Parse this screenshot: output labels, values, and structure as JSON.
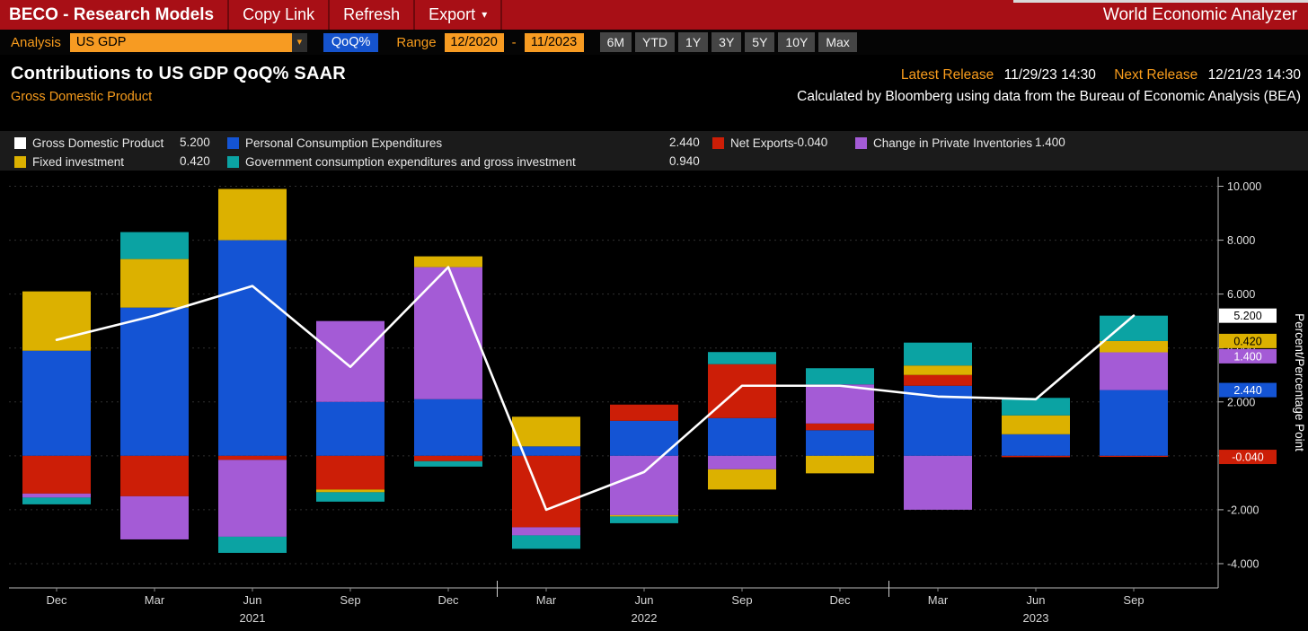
{
  "header": {
    "app_title": "BECO - Research Models",
    "menu_copy_link": "Copy Link",
    "menu_refresh": "Refresh",
    "menu_export": "Export",
    "right_title": "World Economic Analyzer"
  },
  "toolbar": {
    "analysis_label": "Analysis",
    "analysis_value": "US GDP",
    "qoq_button": "QoQ%",
    "range_label": "Range",
    "range_start": "12/2020",
    "range_separator": "-",
    "range_end": "11/2023",
    "period_buttons": [
      "6M",
      "YTD",
      "1Y",
      "3Y",
      "5Y",
      "10Y",
      "Max"
    ]
  },
  "titles": {
    "main": "Contributions to US GDP QoQ% SAAR",
    "subtitle": "Gross Domestic Product",
    "latest_release_label": "Latest Release",
    "latest_release_value": "11/29/23 14:30",
    "next_release_label": "Next Release",
    "next_release_value": "12/21/23 14:30",
    "source_note": "Calculated by Bloomberg using data from the Bureau of Economic Analysis (BEA)"
  },
  "legend": {
    "rows": [
      [
        {
          "label": "Gross Domestic Product",
          "value": "5.200",
          "color": "#ffffff"
        },
        {
          "label": "Personal Consumption Expenditures",
          "value": "2.440",
          "color": "#1454d4"
        },
        {
          "label": "Net Exports",
          "value": "-0.040",
          "color": "#cc1e07"
        },
        {
          "label": "Change in Private Inventories",
          "value": "1.400",
          "color": "#a45bd6"
        }
      ],
      [
        {
          "label": "Fixed investment",
          "value": "0.420",
          "color": "#dcb100"
        },
        {
          "label": "Government consumption expenditures and gross investment",
          "value": "0.940",
          "color": "#0ba3a3"
        }
      ]
    ]
  },
  "chart_data": {
    "type": "bar",
    "subtype": "stacked-bar-with-line",
    "title": "Contributions to US GDP QoQ% SAAR",
    "ylabel": "Percent/Percentage Point",
    "ylim": [
      -4.9,
      10.35
    ],
    "yticks": [
      10,
      8,
      6,
      4,
      2,
      0,
      -2,
      -4
    ],
    "ytick_decimals": 3,
    "categories": [
      "Dec",
      "Mar",
      "Jun",
      "Sep",
      "Dec",
      "Mar",
      "Jun",
      "Sep",
      "Dec",
      "Mar",
      "Jun",
      "Sep"
    ],
    "year_labels": [
      {
        "text": "2021",
        "index": 2
      },
      {
        "text": "2022",
        "index": 6
      },
      {
        "text": "2023",
        "index": 10
      }
    ],
    "year_separator_after_index": [
      4,
      8
    ],
    "series": [
      {
        "name": "Personal Consumption Expenditures",
        "color": "#1454d4",
        "values": [
          3.9,
          5.5,
          8.0,
          2.0,
          2.1,
          0.35,
          1.3,
          1.4,
          0.95,
          2.6,
          0.8,
          2.44
        ]
      },
      {
        "name": "Net Exports",
        "color": "#cc1e07",
        "values": [
          -1.4,
          -1.5,
          -0.15,
          -1.25,
          -0.2,
          -2.65,
          0.6,
          2.0,
          0.25,
          0.4,
          -0.05,
          -0.04
        ]
      },
      {
        "name": "Change in Private Inventories",
        "color": "#a45bd6",
        "values": [
          -0.15,
          -1.6,
          -2.85,
          3.0,
          4.9,
          -0.3,
          -2.2,
          -0.5,
          1.45,
          -2.0,
          0.0,
          1.4
        ]
      },
      {
        "name": "Fixed investment",
        "color": "#dcb100",
        "values": [
          2.2,
          1.8,
          1.9,
          -0.1,
          0.4,
          1.1,
          -0.05,
          -0.75,
          -0.65,
          0.35,
          0.7,
          0.42
        ]
      },
      {
        "name": "Government consumption expenditures and gross investment",
        "color": "#0ba3a3",
        "values": [
          -0.25,
          1.0,
          -0.6,
          -0.35,
          -0.2,
          -0.5,
          -0.25,
          0.45,
          0.6,
          0.85,
          0.65,
          0.94
        ]
      }
    ],
    "line_series": {
      "name": "Gross Domestic Product",
      "color": "#ffffff",
      "values": [
        4.3,
        5.2,
        6.3,
        3.3,
        7.0,
        -2.0,
        -0.6,
        2.6,
        2.6,
        2.2,
        2.1,
        5.2
      ]
    },
    "value_markers": [
      {
        "label": "5.200",
        "value": 5.2,
        "bg": "#ffffff",
        "fg": "#000000"
      },
      {
        "label": "0.420",
        "value": 4.26,
        "bg": "#dcb100",
        "fg": "#000000"
      },
      {
        "label": "1.400",
        "value": 3.84,
        "bg": "#a45bd6",
        "fg": "#ffffff"
      },
      {
        "label": "2.440",
        "value": 2.44,
        "bg": "#1454d4",
        "fg": "#ffffff"
      },
      {
        "label": "-0.040",
        "value": -0.04,
        "bg": "#cc1e07",
        "fg": "#ffffff"
      }
    ]
  }
}
